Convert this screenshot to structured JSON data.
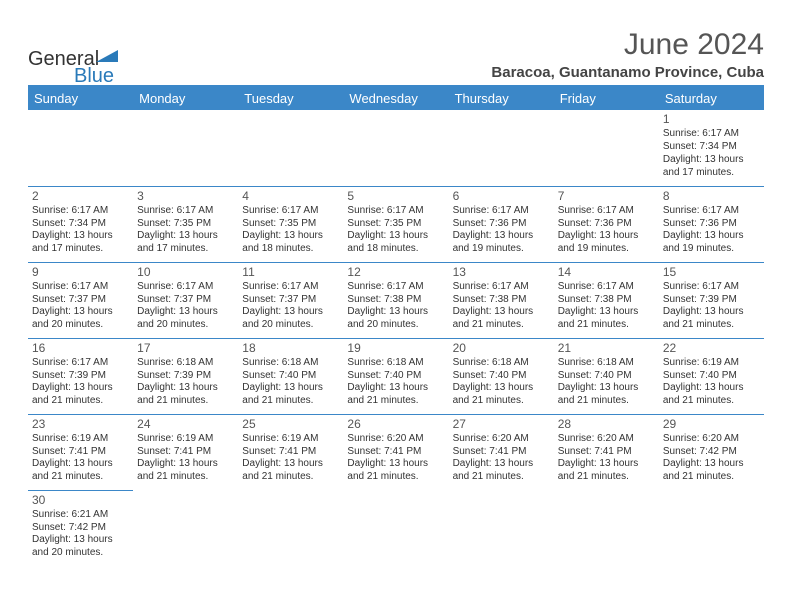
{
  "logo": {
    "text1": "General",
    "text2": "Blue"
  },
  "title": "June 2024",
  "location": "Baracoa, Guantanamo Province, Cuba",
  "header_bg": "#3b87c8",
  "header_fg": "#ffffff",
  "border_color": "#3b87c8",
  "day_headers": [
    "Sunday",
    "Monday",
    "Tuesday",
    "Wednesday",
    "Thursday",
    "Friday",
    "Saturday"
  ],
  "weeks": [
    [
      null,
      null,
      null,
      null,
      null,
      null,
      {
        "n": "1",
        "sr": "6:17 AM",
        "ss": "7:34 PM",
        "dl": "13 hours and 17 minutes."
      }
    ],
    [
      {
        "n": "2",
        "sr": "6:17 AM",
        "ss": "7:34 PM",
        "dl": "13 hours and 17 minutes."
      },
      {
        "n": "3",
        "sr": "6:17 AM",
        "ss": "7:35 PM",
        "dl": "13 hours and 17 minutes."
      },
      {
        "n": "4",
        "sr": "6:17 AM",
        "ss": "7:35 PM",
        "dl": "13 hours and 18 minutes."
      },
      {
        "n": "5",
        "sr": "6:17 AM",
        "ss": "7:35 PM",
        "dl": "13 hours and 18 minutes."
      },
      {
        "n": "6",
        "sr": "6:17 AM",
        "ss": "7:36 PM",
        "dl": "13 hours and 19 minutes."
      },
      {
        "n": "7",
        "sr": "6:17 AM",
        "ss": "7:36 PM",
        "dl": "13 hours and 19 minutes."
      },
      {
        "n": "8",
        "sr": "6:17 AM",
        "ss": "7:36 PM",
        "dl": "13 hours and 19 minutes."
      }
    ],
    [
      {
        "n": "9",
        "sr": "6:17 AM",
        "ss": "7:37 PM",
        "dl": "13 hours and 20 minutes."
      },
      {
        "n": "10",
        "sr": "6:17 AM",
        "ss": "7:37 PM",
        "dl": "13 hours and 20 minutes."
      },
      {
        "n": "11",
        "sr": "6:17 AM",
        "ss": "7:37 PM",
        "dl": "13 hours and 20 minutes."
      },
      {
        "n": "12",
        "sr": "6:17 AM",
        "ss": "7:38 PM",
        "dl": "13 hours and 20 minutes."
      },
      {
        "n": "13",
        "sr": "6:17 AM",
        "ss": "7:38 PM",
        "dl": "13 hours and 21 minutes."
      },
      {
        "n": "14",
        "sr": "6:17 AM",
        "ss": "7:38 PM",
        "dl": "13 hours and 21 minutes."
      },
      {
        "n": "15",
        "sr": "6:17 AM",
        "ss": "7:39 PM",
        "dl": "13 hours and 21 minutes."
      }
    ],
    [
      {
        "n": "16",
        "sr": "6:17 AM",
        "ss": "7:39 PM",
        "dl": "13 hours and 21 minutes."
      },
      {
        "n": "17",
        "sr": "6:18 AM",
        "ss": "7:39 PM",
        "dl": "13 hours and 21 minutes."
      },
      {
        "n": "18",
        "sr": "6:18 AM",
        "ss": "7:40 PM",
        "dl": "13 hours and 21 minutes."
      },
      {
        "n": "19",
        "sr": "6:18 AM",
        "ss": "7:40 PM",
        "dl": "13 hours and 21 minutes."
      },
      {
        "n": "20",
        "sr": "6:18 AM",
        "ss": "7:40 PM",
        "dl": "13 hours and 21 minutes."
      },
      {
        "n": "21",
        "sr": "6:18 AM",
        "ss": "7:40 PM",
        "dl": "13 hours and 21 minutes."
      },
      {
        "n": "22",
        "sr": "6:19 AM",
        "ss": "7:40 PM",
        "dl": "13 hours and 21 minutes."
      }
    ],
    [
      {
        "n": "23",
        "sr": "6:19 AM",
        "ss": "7:41 PM",
        "dl": "13 hours and 21 minutes."
      },
      {
        "n": "24",
        "sr": "6:19 AM",
        "ss": "7:41 PM",
        "dl": "13 hours and 21 minutes."
      },
      {
        "n": "25",
        "sr": "6:19 AM",
        "ss": "7:41 PM",
        "dl": "13 hours and 21 minutes."
      },
      {
        "n": "26",
        "sr": "6:20 AM",
        "ss": "7:41 PM",
        "dl": "13 hours and 21 minutes."
      },
      {
        "n": "27",
        "sr": "6:20 AM",
        "ss": "7:41 PM",
        "dl": "13 hours and 21 minutes."
      },
      {
        "n": "28",
        "sr": "6:20 AM",
        "ss": "7:41 PM",
        "dl": "13 hours and 21 minutes."
      },
      {
        "n": "29",
        "sr": "6:20 AM",
        "ss": "7:42 PM",
        "dl": "13 hours and 21 minutes."
      }
    ],
    [
      {
        "n": "30",
        "sr": "6:21 AM",
        "ss": "7:42 PM",
        "dl": "13 hours and 20 minutes."
      },
      null,
      null,
      null,
      null,
      null,
      null
    ]
  ],
  "labels": {
    "sunrise": "Sunrise: ",
    "sunset": "Sunset: ",
    "daylight": "Daylight: "
  }
}
